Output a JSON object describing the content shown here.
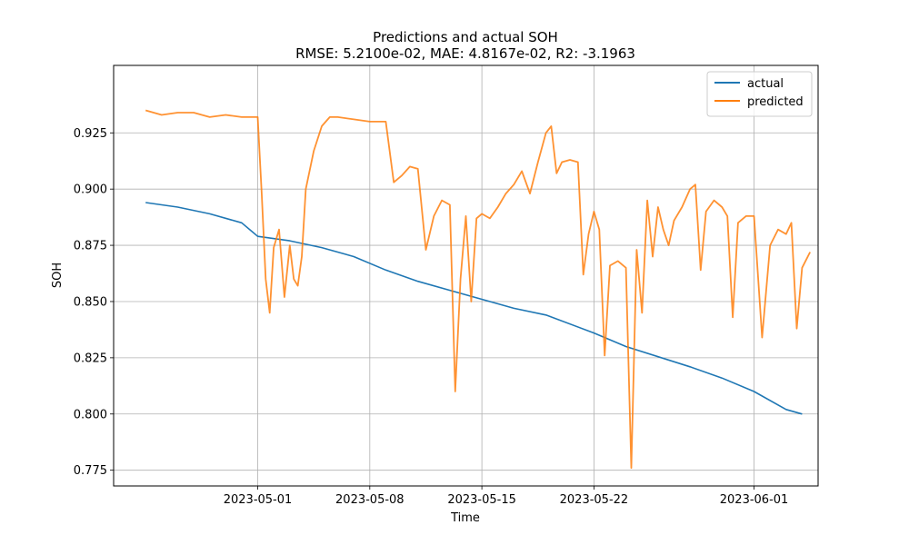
{
  "chart_data": {
    "type": "line",
    "title": "Predictions and actual SOH",
    "subtitle": "RMSE: 5.2100e-02, MAE: 4.8167e-02, R2: -3.1963",
    "xlabel": "Time",
    "ylabel": "SOH",
    "xlim": [
      "2023-04-22",
      "2023-06-05"
    ],
    "ylim": [
      0.768,
      0.955
    ],
    "x_ticks": [
      "2023-05-01",
      "2023-05-08",
      "2023-05-15",
      "2023-05-22",
      "2023-06-01"
    ],
    "y_ticks": [
      "0.775",
      "0.800",
      "0.825",
      "0.850",
      "0.875",
      "0.900",
      "0.925"
    ],
    "grid": true,
    "legend_position": "top-right",
    "series": [
      {
        "name": "actual",
        "color": "#1f77b4",
        "points": [
          [
            "2023-04-24",
            0.894
          ],
          [
            "2023-04-26",
            0.892
          ],
          [
            "2023-04-28",
            0.889
          ],
          [
            "2023-04-30",
            0.885
          ],
          [
            "2023-05-01",
            0.879
          ],
          [
            "2023-05-03",
            0.877
          ],
          [
            "2023-05-05",
            0.874
          ],
          [
            "2023-05-07",
            0.87
          ],
          [
            "2023-05-09",
            0.864
          ],
          [
            "2023-05-11",
            0.859
          ],
          [
            "2023-05-13",
            0.855
          ],
          [
            "2023-05-15",
            0.851
          ],
          [
            "2023-05-17",
            0.847
          ],
          [
            "2023-05-19",
            0.844
          ],
          [
            "2023-05-22",
            0.836
          ],
          [
            "2023-05-24",
            0.83
          ],
          [
            "2023-05-28",
            0.821
          ],
          [
            "2023-05-30",
            0.816
          ],
          [
            "2023-06-01",
            0.81
          ],
          [
            "2023-06-03",
            0.802
          ],
          [
            "2023-06-04",
            0.8
          ]
        ]
      },
      {
        "name": "predicted",
        "color": "#ff7f0e",
        "points": [
          [
            "2023-04-24",
            0.935
          ],
          [
            "2023-04-25",
            0.933
          ],
          [
            "2023-04-26",
            0.934
          ],
          [
            "2023-04-27",
            0.934
          ],
          [
            "2023-04-28",
            0.932
          ],
          [
            "2023-04-29",
            0.933
          ],
          [
            "2023-04-30",
            0.932
          ],
          [
            "2023-05-01",
            0.932
          ],
          [
            "2023-05-01",
            0.898
          ],
          [
            "2023-05-01",
            0.86
          ],
          [
            "2023-05-01",
            0.845
          ],
          [
            "2023-05-02",
            0.874
          ],
          [
            "2023-05-02",
            0.882
          ],
          [
            "2023-05-02",
            0.852
          ],
          [
            "2023-05-03",
            0.875
          ],
          [
            "2023-05-03",
            0.86
          ],
          [
            "2023-05-03",
            0.857
          ],
          [
            "2023-05-03",
            0.87
          ],
          [
            "2023-05-04",
            0.9
          ],
          [
            "2023-05-04",
            0.917
          ],
          [
            "2023-05-05",
            0.928
          ],
          [
            "2023-05-05",
            0.932
          ],
          [
            "2023-05-06",
            0.932
          ],
          [
            "2023-05-07",
            0.931
          ],
          [
            "2023-05-08",
            0.93
          ],
          [
            "2023-05-09",
            0.93
          ],
          [
            "2023-05-09",
            0.903
          ],
          [
            "2023-05-10",
            0.906
          ],
          [
            "2023-05-10",
            0.91
          ],
          [
            "2023-05-11",
            0.909
          ],
          [
            "2023-05-11",
            0.873
          ],
          [
            "2023-05-12",
            0.888
          ],
          [
            "2023-05-12",
            0.895
          ],
          [
            "2023-05-13",
            0.893
          ],
          [
            "2023-05-13",
            0.81
          ],
          [
            "2023-05-13",
            0.86
          ],
          [
            "2023-05-14",
            0.888
          ],
          [
            "2023-05-14",
            0.85
          ],
          [
            "2023-05-14",
            0.887
          ],
          [
            "2023-05-15",
            0.889
          ],
          [
            "2023-05-15",
            0.887
          ],
          [
            "2023-05-16",
            0.892
          ],
          [
            "2023-05-16",
            0.898
          ],
          [
            "2023-05-17",
            0.902
          ],
          [
            "2023-05-17",
            0.908
          ],
          [
            "2023-05-18",
            0.898
          ],
          [
            "2023-05-18",
            0.912
          ],
          [
            "2023-05-19",
            0.925
          ],
          [
            "2023-05-19",
            0.928
          ],
          [
            "2023-05-19",
            0.907
          ],
          [
            "2023-05-20",
            0.912
          ],
          [
            "2023-05-20",
            0.913
          ],
          [
            "2023-05-21",
            0.912
          ],
          [
            "2023-05-21",
            0.862
          ],
          [
            "2023-05-21",
            0.88
          ],
          [
            "2023-05-22",
            0.89
          ],
          [
            "2023-05-22",
            0.882
          ],
          [
            "2023-05-22",
            0.826
          ],
          [
            "2023-05-23",
            0.866
          ],
          [
            "2023-05-23",
            0.868
          ],
          [
            "2023-05-24",
            0.865
          ],
          [
            "2023-05-24",
            0.776
          ],
          [
            "2023-05-24",
            0.873
          ],
          [
            "2023-05-25",
            0.845
          ],
          [
            "2023-05-25",
            0.895
          ],
          [
            "2023-05-25",
            0.87
          ],
          [
            "2023-05-26",
            0.892
          ],
          [
            "2023-05-26",
            0.882
          ],
          [
            "2023-05-26",
            0.875
          ],
          [
            "2023-05-27",
            0.886
          ],
          [
            "2023-05-27",
            0.892
          ],
          [
            "2023-05-28",
            0.9
          ],
          [
            "2023-05-28",
            0.902
          ],
          [
            "2023-05-28",
            0.864
          ],
          [
            "2023-05-29",
            0.89
          ],
          [
            "2023-05-29",
            0.895
          ],
          [
            "2023-05-30",
            0.892
          ],
          [
            "2023-05-30",
            0.888
          ],
          [
            "2023-05-30",
            0.843
          ],
          [
            "2023-05-31",
            0.885
          ],
          [
            "2023-05-31",
            0.888
          ],
          [
            "2023-06-01",
            0.888
          ],
          [
            "2023-06-01",
            0.834
          ],
          [
            "2023-06-02",
            0.875
          ],
          [
            "2023-06-02",
            0.882
          ],
          [
            "2023-06-03",
            0.88
          ],
          [
            "2023-06-03",
            0.885
          ],
          [
            "2023-06-03",
            0.838
          ],
          [
            "2023-06-04",
            0.865
          ],
          [
            "2023-06-04",
            0.872
          ]
        ]
      }
    ]
  }
}
